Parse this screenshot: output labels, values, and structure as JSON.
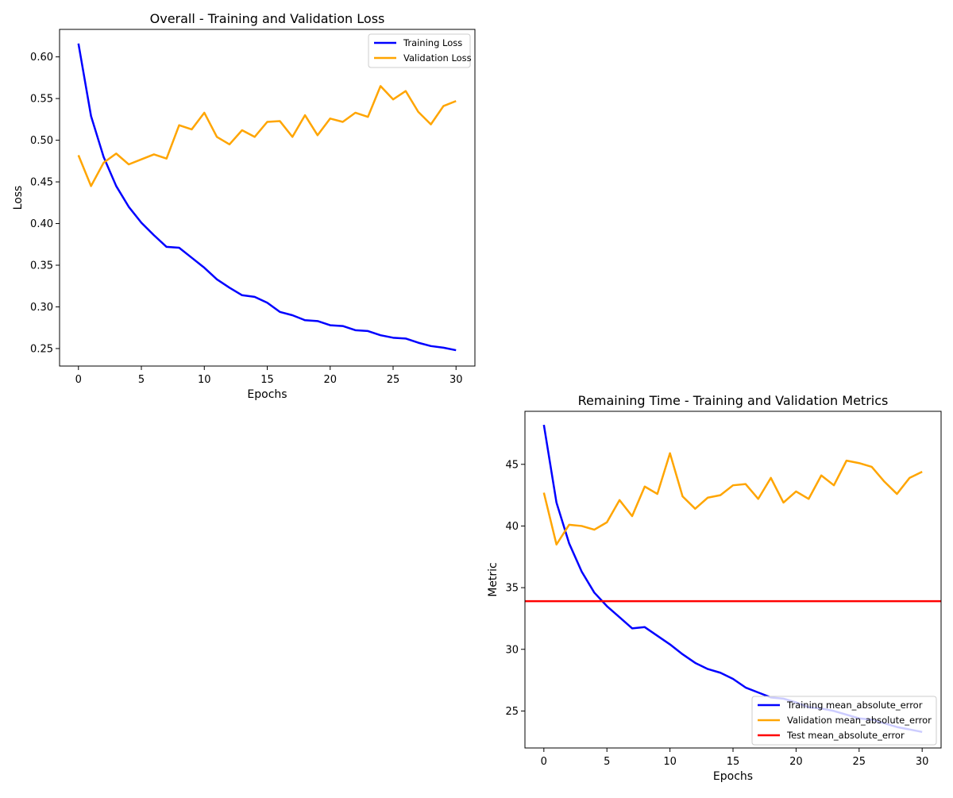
{
  "chart_data": [
    {
      "type": "line",
      "title": "Overall - Training and Validation Loss",
      "xlabel": "Epochs",
      "ylabel": "Loss",
      "xlim": [
        -1.5,
        31.5
      ],
      "ylim": [
        0.229,
        0.633
      ],
      "xticks": [
        0,
        5,
        10,
        15,
        20,
        25,
        30
      ],
      "xtick_labels": [
        "0",
        "5",
        "10",
        "15",
        "20",
        "25",
        "30"
      ],
      "yticks": [
        0.25,
        0.3,
        0.35,
        0.4,
        0.45,
        0.5,
        0.55,
        0.6
      ],
      "ytick_labels": [
        "0.25",
        "0.30",
        "0.35",
        "0.40",
        "0.45",
        "0.50",
        "0.55",
        "0.60"
      ],
      "grid": false,
      "legend_position": "upper right",
      "x": [
        0,
        1,
        2,
        3,
        4,
        5,
        6,
        7,
        8,
        9,
        10,
        11,
        12,
        13,
        14,
        15,
        16,
        17,
        18,
        19,
        20,
        21,
        22,
        23,
        24,
        25,
        26,
        27,
        28,
        29,
        30
      ],
      "series": [
        {
          "name": "Training Loss",
          "color": "#0000ff",
          "values": [
            0.616,
            0.529,
            0.48,
            0.445,
            0.42,
            0.401,
            0.386,
            0.372,
            0.371,
            0.359,
            0.347,
            0.333,
            0.323,
            0.314,
            0.312,
            0.305,
            0.294,
            0.29,
            0.284,
            0.283,
            0.278,
            0.277,
            0.272,
            0.271,
            0.266,
            0.263,
            0.262,
            0.257,
            0.253,
            0.251,
            0.248
          ]
        },
        {
          "name": "Validation Loss",
          "color": "#ffa500",
          "values": [
            0.482,
            0.445,
            0.473,
            0.484,
            0.471,
            0.477,
            0.483,
            0.478,
            0.518,
            0.513,
            0.533,
            0.504,
            0.495,
            0.512,
            0.504,
            0.522,
            0.523,
            0.504,
            0.53,
            0.506,
            0.526,
            0.522,
            0.533,
            0.528,
            0.565,
            0.549,
            0.559,
            0.534,
            0.519,
            0.541,
            0.547
          ]
        }
      ]
    },
    {
      "type": "line",
      "title": "Remaining Time - Training and Validation Metrics",
      "xlabel": "Epochs",
      "ylabel": "Metric",
      "xlim": [
        -1.5,
        31.5
      ],
      "ylim": [
        22.0,
        49.3
      ],
      "xticks": [
        0,
        5,
        10,
        15,
        20,
        25,
        30
      ],
      "xtick_labels": [
        "0",
        "5",
        "10",
        "15",
        "20",
        "25",
        "30"
      ],
      "yticks": [
        25,
        30,
        35,
        40,
        45
      ],
      "ytick_labels": [
        "25",
        "30",
        "35",
        "40",
        "45"
      ],
      "grid": false,
      "legend_position": "lower right",
      "x": [
        0,
        1,
        2,
        3,
        4,
        5,
        6,
        7,
        8,
        9,
        10,
        11,
        12,
        13,
        14,
        15,
        16,
        17,
        18,
        19,
        20,
        21,
        22,
        23,
        24,
        25,
        26,
        27,
        28,
        29,
        30
      ],
      "series": [
        {
          "name": "Training mean_absolute_error",
          "color": "#0000ff",
          "values": [
            48.2,
            41.9,
            38.6,
            36.3,
            34.6,
            33.5,
            32.6,
            31.7,
            31.8,
            31.1,
            30.4,
            29.6,
            28.9,
            28.4,
            28.1,
            27.6,
            26.9,
            26.5,
            26.1,
            26.0,
            25.7,
            25.3,
            25.2,
            25.0,
            24.7,
            24.4,
            24.3,
            24.0,
            23.7,
            23.5,
            23.3
          ]
        },
        {
          "name": "Validation mean_absolute_error",
          "color": "#ffa500",
          "values": [
            42.7,
            38.5,
            40.1,
            40.0,
            39.7,
            40.3,
            42.1,
            40.8,
            43.2,
            42.6,
            45.9,
            42.4,
            41.4,
            42.3,
            42.5,
            43.3,
            43.4,
            42.2,
            43.9,
            41.9,
            42.8,
            42.2,
            44.1,
            43.3,
            45.3,
            45.1,
            44.8,
            43.6,
            42.6,
            43.9,
            44.4
          ]
        },
        {
          "name": "Test mean_absolute_error",
          "color": "#ff0000",
          "hline": 33.9
        }
      ]
    }
  ]
}
